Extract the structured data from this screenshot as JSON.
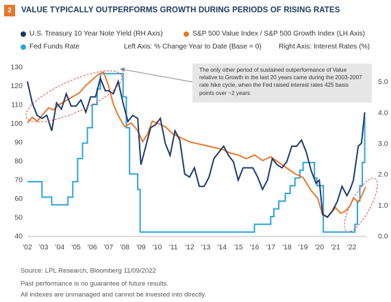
{
  "header": {
    "figure_number": "2",
    "title": "VALUE TYPICALLY OUTPERFORMS GROWTH DURING PERIODS OF RISING RATES"
  },
  "legend": {
    "treasury": "U.S. Treasury 10 Year Note Yield (RH Axis)",
    "ratio": "S&P 500 Value Index / S&P 500 Growth Index (LH Axis)",
    "fed": "Fed Funds Rate",
    "left_axis_note": "Left Axis: % Change Year to Date (Base = 0)",
    "right_axis_note": "Right Axis: Interest Rates (%)"
  },
  "annotation": "The only other period of sustained outperformance of Value relative to Growth in the last 20 years came during the 2003-2007 rate hike cycle, when the Fed raised interest rates 425 basis points over ~2 years",
  "footer": {
    "source": "Source: LPL Research, Bloomberg  11/09/2022",
    "disclaimer1": "Past performance is no guarantee of future results.",
    "disclaimer2": "All indexes are unmanaged and cannot be invested into directly."
  },
  "colors": {
    "treasury": "#1b3a6b",
    "ratio": "#e8772e",
    "fed": "#2aa3dc",
    "highlight": "#d94848",
    "badge": "#e8772e"
  },
  "chart_data": {
    "type": "line",
    "x_tick_labels": [
      "'02",
      "'03",
      "'04",
      "'05",
      "'06",
      "'07",
      "'08",
      "'09",
      "'10",
      "'11",
      "'12",
      "'13",
      "'14",
      "'15",
      "'16",
      "'17",
      "'18",
      "'19",
      "'20",
      "'21",
      "'22"
    ],
    "x_range": [
      2002.0,
      2022.9
    ],
    "left_axis": {
      "ticks": [
        40,
        50,
        60,
        70,
        80,
        90,
        100,
        110,
        120,
        130
      ],
      "range": [
        40,
        132
      ]
    },
    "right_axis": {
      "ticks": [
        "0.0",
        "1.0",
        "2.0",
        "3.0",
        "4.0",
        "5.0"
      ],
      "range": [
        0,
        5.6
      ]
    },
    "series": [
      {
        "name": "S&P 500 Value Index / S&P 500 Growth Index (LH Axis)",
        "axis": "left",
        "x": [
          2002.0,
          2002.3,
          2002.6,
          2002.9,
          2003.3,
          2003.6,
          2004.0,
          2004.4,
          2004.8,
          2005.2,
          2005.6,
          2006.0,
          2006.4,
          2006.7,
          2007.0,
          2007.3,
          2007.6,
          2008.0,
          2008.4,
          2008.8,
          2009.1,
          2009.4,
          2009.7,
          2010.0,
          2010.5,
          2011.0,
          2011.5,
          2012.0,
          2012.5,
          2013.0,
          2013.5,
          2014.0,
          2014.5,
          2015.0,
          2015.5,
          2016.0,
          2016.5,
          2017.0,
          2017.5,
          2018.0,
          2018.5,
          2019.0,
          2019.5,
          2019.9,
          2020.2,
          2020.5,
          2020.8,
          2021.0,
          2021.3,
          2021.6,
          2021.9,
          2022.1,
          2022.4,
          2022.6,
          2022.85
        ],
        "values": [
          100,
          103,
          101,
          104,
          108,
          107,
          110,
          112,
          114,
          116,
          120,
          123,
          126,
          127,
          120,
          110,
          104,
          98,
          100,
          96,
          90,
          94,
          101,
          100,
          98,
          94,
          92,
          90,
          89,
          88,
          87,
          86,
          84,
          83,
          81,
          83,
          80,
          82,
          79,
          76,
          73,
          71,
          64,
          60,
          51,
          50,
          53,
          55,
          52,
          53,
          56,
          60,
          58,
          61,
          66
        ]
      },
      {
        "name": "U.S. Treasury 10 Year Note Yield (RH Axis)",
        "axis": "right",
        "x": [
          2002.0,
          2002.3,
          2002.6,
          2002.9,
          2003.2,
          2003.5,
          2003.8,
          2004.1,
          2004.4,
          2004.7,
          2005.0,
          2005.3,
          2005.6,
          2005.9,
          2006.2,
          2006.5,
          2006.8,
          2007.0,
          2007.3,
          2007.6,
          2007.9,
          2008.2,
          2008.5,
          2008.8,
          2009.0,
          2009.3,
          2009.6,
          2009.9,
          2010.2,
          2010.5,
          2010.8,
          2011.1,
          2011.4,
          2011.7,
          2012.0,
          2012.3,
          2012.6,
          2012.9,
          2013.2,
          2013.5,
          2013.8,
          2014.1,
          2014.4,
          2014.7,
          2015.0,
          2015.3,
          2015.6,
          2015.9,
          2016.2,
          2016.5,
          2016.8,
          2017.1,
          2017.4,
          2017.7,
          2018.0,
          2018.3,
          2018.6,
          2018.9,
          2019.2,
          2019.5,
          2019.8,
          2020.0,
          2020.2,
          2020.5,
          2020.8,
          2021.1,
          2021.4,
          2021.7,
          2021.9,
          2022.1,
          2022.4,
          2022.6,
          2022.8
        ],
        "values": [
          5.0,
          4.3,
          3.9,
          3.8,
          3.9,
          3.4,
          4.3,
          4.1,
          4.6,
          4.2,
          4.2,
          4.4,
          4.0,
          4.5,
          4.5,
          5.1,
          4.7,
          4.7,
          4.6,
          5.0,
          4.3,
          3.7,
          3.9,
          3.8,
          2.3,
          2.9,
          3.5,
          3.6,
          3.8,
          3.0,
          2.6,
          3.4,
          3.1,
          2.0,
          1.9,
          2.2,
          1.6,
          1.6,
          1.9,
          2.5,
          2.7,
          2.9,
          2.6,
          2.4,
          1.8,
          2.2,
          2.2,
          2.2,
          1.9,
          1.5,
          1.8,
          2.5,
          2.3,
          2.2,
          2.4,
          2.9,
          2.9,
          3.1,
          2.7,
          2.1,
          1.7,
          1.8,
          0.7,
          0.6,
          0.8,
          1.1,
          1.6,
          1.3,
          1.5,
          1.8,
          2.9,
          3.0,
          4.0
        ]
      },
      {
        "name": "Fed Funds Rate",
        "axis": "right",
        "x": [
          2002.0,
          2002.05,
          2002.9,
          2003.5,
          2004.5,
          2004.8,
          2005.1,
          2005.4,
          2005.7,
          2006.0,
          2006.3,
          2006.5,
          2007.7,
          2007.9,
          2008.1,
          2008.3,
          2008.8,
          2008.95,
          2015.9,
          2016.0,
          2016.9,
          2017.0,
          2017.2,
          2017.5,
          2017.9,
          2018.2,
          2018.5,
          2018.8,
          2019.0,
          2019.5,
          2019.7,
          2019.85,
          2020.15,
          2020.25,
          2022.1,
          2022.2,
          2022.35,
          2022.5,
          2022.65,
          2022.8
        ],
        "values": [
          1.75,
          1.75,
          1.25,
          1.0,
          1.25,
          1.75,
          2.5,
          3.0,
          3.5,
          4.25,
          4.75,
          5.25,
          5.25,
          4.5,
          3.5,
          2.0,
          1.5,
          0.12,
          0.12,
          0.37,
          0.37,
          0.62,
          0.87,
          1.12,
          1.37,
          1.62,
          1.87,
          2.12,
          2.37,
          2.37,
          1.87,
          1.62,
          1.62,
          0.12,
          0.12,
          0.37,
          1.12,
          1.62,
          2.37,
          3.87
        ]
      }
    ],
    "grid": false,
    "legend_position": "top"
  }
}
